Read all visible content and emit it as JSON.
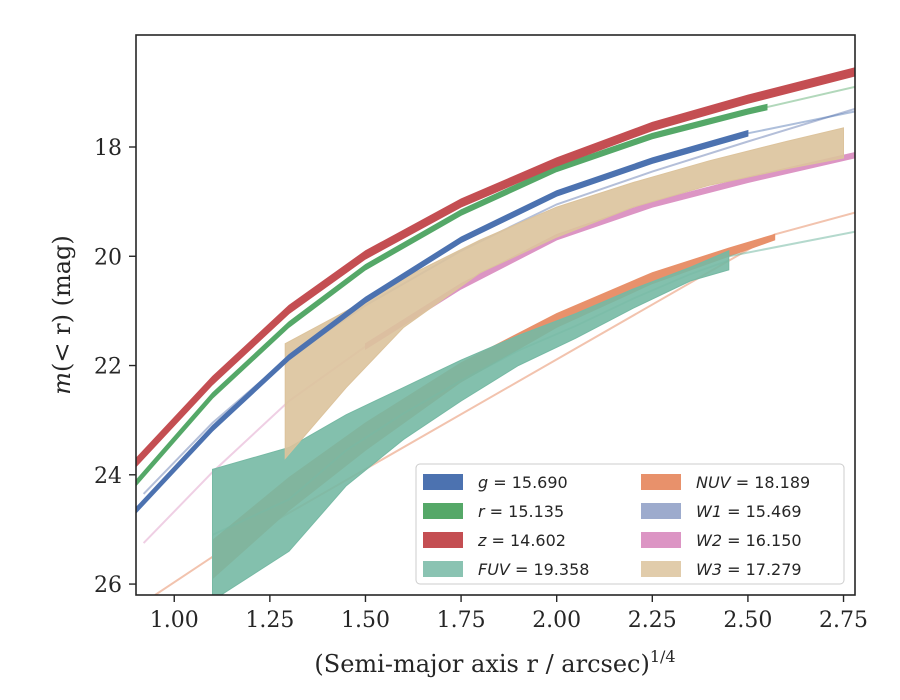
{
  "chart_data": {
    "type": "area",
    "xlabel": "(Semi-major axis r / arcsec)",
    "xlabel_exponent": "1/4",
    "ylabel_prefix": "m",
    "ylabel_math": "(< r)",
    "ylabel_unit": " (mag)",
    "xlim": [
      0.9,
      2.78
    ],
    "ylim": [
      26.2,
      15.95
    ],
    "y_inverted": true,
    "grid": false,
    "legend_position": "lower-right",
    "xticks": [
      1.0,
      1.25,
      1.5,
      1.75,
      2.0,
      2.25,
      2.5,
      2.75
    ],
    "xtick_labels": [
      "1.00",
      "1.25",
      "1.50",
      "1.75",
      "2.00",
      "2.25",
      "2.50",
      "2.75"
    ],
    "yticks": [
      18,
      20,
      22,
      24,
      26
    ],
    "ytick_labels": [
      "18",
      "20",
      "22",
      "24",
      "26"
    ],
    "series": [
      {
        "band": "g",
        "italic": true,
        "value": "15.690",
        "color": "#4c72b0",
        "x": [
          0.9,
          1.1,
          1.3,
          1.5,
          1.75,
          2.0,
          2.25,
          2.5,
          2.78
        ],
        "y_upper": [
          24.6,
          23.1,
          21.8,
          20.75,
          19.65,
          18.8,
          18.2,
          17.7,
          17.3
        ],
        "y_lower": [
          24.7,
          23.2,
          21.9,
          20.85,
          19.75,
          18.9,
          18.3,
          17.8,
          17.4
        ],
        "solid_until": 2.5
      },
      {
        "band": "r",
        "italic": true,
        "value": "15.135",
        "color": "#55a868",
        "x": [
          0.9,
          1.1,
          1.3,
          1.5,
          1.75,
          2.0,
          2.25,
          2.5,
          2.78
        ],
        "y_upper": [
          24.1,
          22.5,
          21.2,
          20.15,
          19.15,
          18.35,
          17.75,
          17.3,
          16.85
        ],
        "y_lower": [
          24.2,
          22.6,
          21.3,
          20.25,
          19.25,
          18.45,
          17.85,
          17.4,
          16.95
        ],
        "solid_until": 2.55
      },
      {
        "band": "z",
        "italic": true,
        "value": "14.602",
        "color": "#c44e52",
        "x": [
          0.9,
          1.1,
          1.3,
          1.5,
          1.75,
          2.0,
          2.25,
          2.5,
          2.78
        ],
        "y_upper": [
          23.7,
          22.2,
          20.9,
          19.9,
          18.95,
          18.2,
          17.55,
          17.05,
          16.55
        ],
        "y_lower": [
          23.85,
          22.35,
          21.05,
          20.05,
          19.1,
          18.35,
          17.7,
          17.2,
          16.7
        ],
        "solid_until": 2.78
      },
      {
        "band": "FUV",
        "italic": true,
        "value": "19.358",
        "color": "#76b9a4",
        "x": [
          1.1,
          1.3,
          1.45,
          1.6,
          1.75,
          1.9,
          2.05,
          2.2,
          2.35,
          2.45
        ],
        "y_upper": [
          23.9,
          23.5,
          22.9,
          22.4,
          21.9,
          21.45,
          21.05,
          20.6,
          20.2,
          19.9
        ],
        "y_lower": [
          26.3,
          25.4,
          24.2,
          23.35,
          22.65,
          22.0,
          21.5,
          20.95,
          20.45,
          20.25
        ],
        "faded": {
          "x": [
            2.45,
            2.78
          ],
          "y": [
            20.0,
            19.55
          ]
        },
        "solid_until": 2.45
      },
      {
        "band": "NUV",
        "italic": true,
        "value": "18.189",
        "color": "#e8916b",
        "x": [
          1.1,
          1.3,
          1.5,
          1.75,
          2.0,
          2.25,
          2.45,
          2.57
        ],
        "y_upper": [
          25.2,
          24.05,
          23.05,
          21.95,
          21.05,
          20.3,
          19.85,
          19.6
        ],
        "y_lower": [
          25.9,
          24.65,
          23.55,
          22.3,
          21.3,
          20.5,
          20.0,
          19.7
        ],
        "faded": {
          "x": [
            0.95,
            1.1,
            2.57,
            2.78
          ],
          "y": [
            26.2,
            25.5,
            19.6,
            19.2
          ]
        },
        "solid_until": 2.57
      },
      {
        "band": "W1",
        "italic": true,
        "value": "15.469",
        "color": "#8c9cc4",
        "x": [
          0.92,
          1.1,
          1.3,
          1.5,
          1.75,
          2.0,
          2.25,
          2.5,
          2.78
        ],
        "y_upper": [
          24.3,
          23.0,
          21.8,
          20.85,
          19.85,
          19.0,
          18.4,
          17.85,
          17.25
        ],
        "y_lower": [
          24.4,
          23.1,
          21.9,
          20.95,
          19.95,
          19.1,
          18.5,
          17.95,
          17.35
        ],
        "faded_only": true
      },
      {
        "band": "W2",
        "italic": true,
        "value": "16.150",
        "color": "#dc95c4",
        "x": [
          0.92,
          1.1,
          1.3,
          1.5,
          1.75,
          2.0,
          2.25,
          2.5,
          2.78
        ],
        "y_upper": [
          25.2,
          23.9,
          22.6,
          21.6,
          20.5,
          19.6,
          19.0,
          18.55,
          18.1
        ],
        "y_lower": [
          25.3,
          24.0,
          22.7,
          21.7,
          20.6,
          19.7,
          19.1,
          18.65,
          18.2
        ],
        "solid_from": 1.5
      },
      {
        "band": "W3",
        "italic": true,
        "value": "17.279",
        "color": "#dcc39c",
        "x": [
          1.29,
          1.45,
          1.6,
          1.8,
          2.0,
          2.2,
          2.4,
          2.6,
          2.75
        ],
        "y_upper": [
          21.6,
          21.0,
          20.4,
          19.7,
          19.1,
          18.65,
          18.25,
          17.9,
          17.65
        ],
        "y_lower": [
          23.7,
          22.4,
          21.3,
          20.3,
          19.65,
          19.1,
          18.7,
          18.4,
          18.2
        ]
      }
    ],
    "legend_order": [
      "g",
      "r",
      "z",
      "FUV",
      "NUV",
      "W1",
      "W2",
      "W3"
    ]
  }
}
